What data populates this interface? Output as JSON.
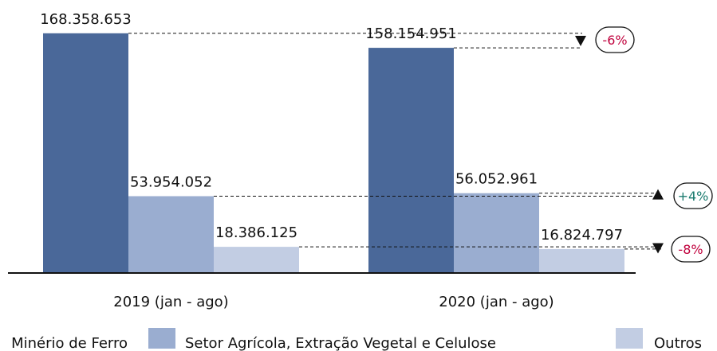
{
  "chart_data": {
    "type": "bar",
    "categories": [
      "2019 (jan - ago)",
      "2020 (jan - ago)"
    ],
    "series": [
      {
        "name": "Minério de Ferro",
        "color": "#4a6899",
        "values": [
          168358653,
          158154951
        ],
        "value_labels": [
          "168.358.653",
          "158.154.951"
        ]
      },
      {
        "name": "Setor Agrícola, Extração Vegetal e Celulose",
        "color": "#9aadd0",
        "values": [
          53954052,
          56052961
        ],
        "value_labels": [
          "53.954.052",
          "56.052.961"
        ]
      },
      {
        "name": "Outros",
        "color": "#c2cde3",
        "values": [
          18386125,
          16824797
        ],
        "value_labels": [
          "18.386.125",
          "16.824.797"
        ]
      }
    ],
    "annotations": [
      {
        "text": "-6%",
        "color": "#c0003c"
      },
      {
        "text": "+4%",
        "color": "#1a7a6e"
      },
      {
        "text": "-8%",
        "color": "#c0003c"
      }
    ],
    "ylim": [
      0,
      180000000
    ],
    "legend": "bottom"
  }
}
